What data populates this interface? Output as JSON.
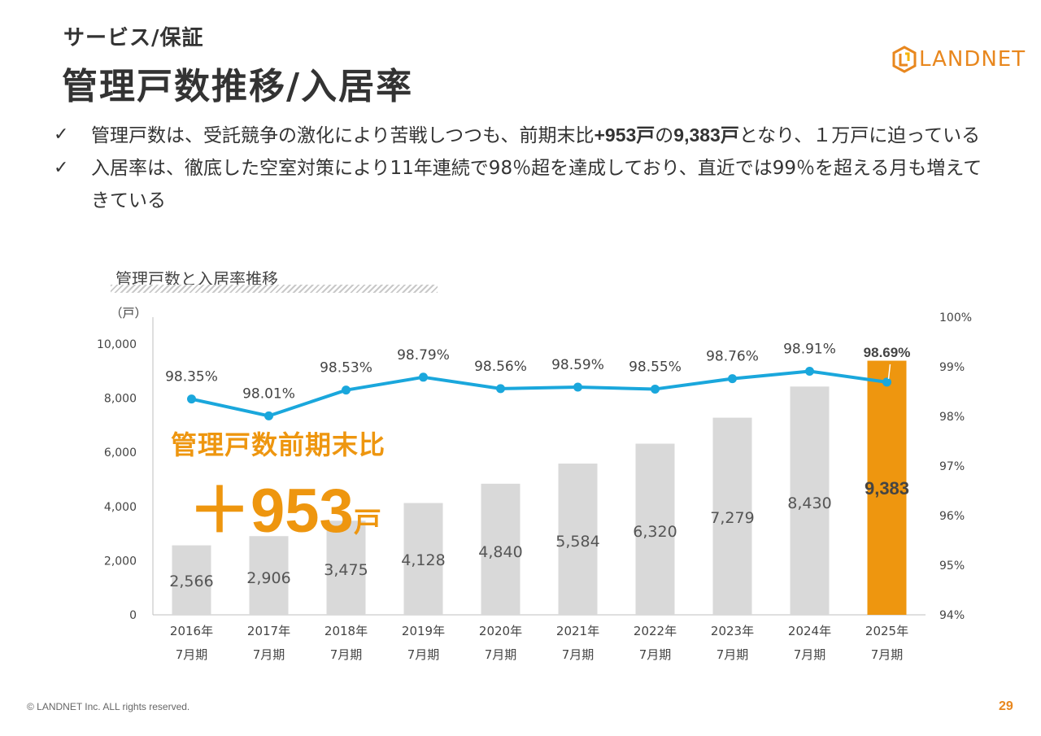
{
  "header": {
    "subtitle": "サービス/保証",
    "title": "管理戸数推移/入居率",
    "logo_text": "LANDNET"
  },
  "bullets": [
    {
      "icon": "check-icon",
      "check": "✓",
      "parts": [
        {
          "text": "管理戸数は、受託競争の激化により苦戦しつつも、前期末比",
          "bold": false
        },
        {
          "text": "+953戸",
          "bold": true
        },
        {
          "text": "の",
          "bold": false
        },
        {
          "text": "9,383戸",
          "bold": true
        },
        {
          "text": "となり、１万戸に迫っている",
          "bold": false
        }
      ]
    },
    {
      "icon": "check-icon",
      "check": "✓",
      "parts": [
        {
          "text": "入居率は、徹底した空室対策により11年連続で98％超を達成しており、直近では99％を超える月も増えてきている",
          "bold": false
        }
      ]
    }
  ],
  "chart_label": "管理戸数と入居率推移",
  "callout": {
    "line1": "管理戸数前期末比",
    "sign": "＋",
    "number": "953",
    "unit": "戸"
  },
  "chart_data": {
    "type": "bar",
    "categories": [
      [
        "2016年",
        "7月期"
      ],
      [
        "2017年",
        "7月期"
      ],
      [
        "2018年",
        "7月期"
      ],
      [
        "2019年",
        "7月期"
      ],
      [
        "2020年",
        "7月期"
      ],
      [
        "2021年",
        "7月期"
      ],
      [
        "2022年",
        "7月期"
      ],
      [
        "2023年",
        "7月期"
      ],
      [
        "2024年",
        "7月期"
      ],
      [
        "2025年",
        "7月期"
      ]
    ],
    "series": [
      {
        "type": "bar",
        "values": [
          2566,
          2906,
          3475,
          4128,
          4840,
          5584,
          6320,
          7279,
          8430,
          9383
        ],
        "labels": [
          "2,566",
          "2,906",
          "3,475",
          "4,128",
          "4,840",
          "5,584",
          "6,320",
          "7,279",
          "8,430",
          "9,383"
        ],
        "axis": "left",
        "color": "#d9d9d9",
        "highlight_color": "#ee960f",
        "highlight_index": 9
      },
      {
        "type": "line",
        "values": [
          98.35,
          98.01,
          98.53,
          98.79,
          98.56,
          98.59,
          98.55,
          98.76,
          98.91,
          98.69
        ],
        "labels": [
          "98.35%",
          "98.01%",
          "98.53%",
          "98.79%",
          "98.56%",
          "98.59%",
          "98.55%",
          "98.76%",
          "98.91%",
          "98.69%"
        ],
        "axis": "right",
        "color": "#1aa7dc"
      }
    ],
    "y_left": {
      "unit_label": "（戸）",
      "ylim": [
        0,
        10000
      ],
      "ticks": [
        0,
        2000,
        4000,
        6000,
        8000,
        10000
      ],
      "tick_labels": [
        "0",
        "2,000",
        "4,000",
        "6,000",
        "8,000",
        "10,000"
      ]
    },
    "y_right": {
      "ylim": [
        94,
        100
      ],
      "ticks": [
        94,
        95,
        96,
        97,
        98,
        99,
        100
      ],
      "tick_labels": [
        "94%",
        "95%",
        "96%",
        "97%",
        "98%",
        "99%",
        "100%"
      ]
    },
    "grid": false,
    "legend": "none"
  },
  "footer": {
    "copyright": "© LANDNET Inc. ALL rights reserved.",
    "page": "29"
  }
}
